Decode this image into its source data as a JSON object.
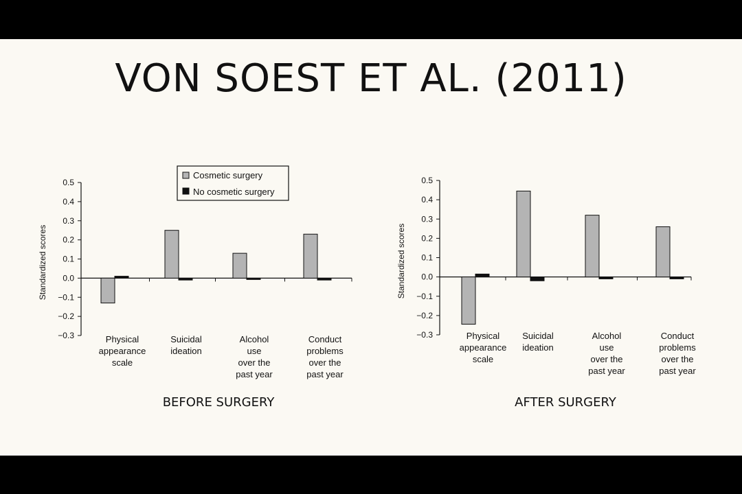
{
  "slide": {
    "title": "VON SOEST ET AL. (2011)"
  },
  "legend": {
    "entries": [
      "Cosmetic surgery",
      "No cosmetic surgery"
    ]
  },
  "colors": {
    "cosmetic": "#b4b4b4",
    "no_cosmetic": "#111111",
    "background": "#fbf9f3"
  },
  "chart_data": [
    {
      "type": "bar",
      "caption": "BEFORE SURGERY",
      "ylabel": "Standardized scores",
      "ylim": [
        -0.3,
        0.5
      ],
      "yticks": [
        "0.5",
        "0.4",
        "0.3",
        "0.2",
        "0.1",
        "0.0",
        "−0.1",
        "−0.2",
        "−0.3"
      ],
      "categories": [
        [
          "Physical",
          "appearance",
          "scale"
        ],
        [
          "Suicidal",
          "ideation"
        ],
        [
          "Alcohol",
          "use",
          "over the",
          "past year"
        ],
        [
          "Conduct",
          "problems",
          "over the",
          "past year"
        ]
      ],
      "series": [
        {
          "name": "Cosmetic surgery",
          "values": [
            -0.13,
            0.25,
            0.13,
            0.23
          ]
        },
        {
          "name": "No cosmetic surgery",
          "values": [
            0.01,
            -0.01,
            -0.005,
            -0.01
          ]
        }
      ],
      "legend_position": "top-right"
    },
    {
      "type": "bar",
      "caption": "AFTER SURGERY",
      "ylabel": "Standardized scores",
      "ylim": [
        -0.3,
        0.5
      ],
      "yticks": [
        "0.5",
        "0.4",
        "0.3",
        "0.2",
        "0.1",
        "0.0",
        "−0.1",
        "−0.2",
        "−0.3"
      ],
      "categories": [
        [
          "Physical",
          "appearance",
          "scale"
        ],
        [
          "Suicidal",
          "ideation"
        ],
        [
          "Alcohol",
          "use",
          "over the",
          "past year"
        ],
        [
          "Conduct",
          "problems",
          "over the",
          "past year"
        ]
      ],
      "series": [
        {
          "name": "Cosmetic surgery",
          "values": [
            -0.245,
            0.445,
            0.32,
            0.26
          ]
        },
        {
          "name": "No cosmetic surgery",
          "values": [
            0.015,
            -0.02,
            -0.01,
            -0.01
          ]
        }
      ]
    }
  ]
}
